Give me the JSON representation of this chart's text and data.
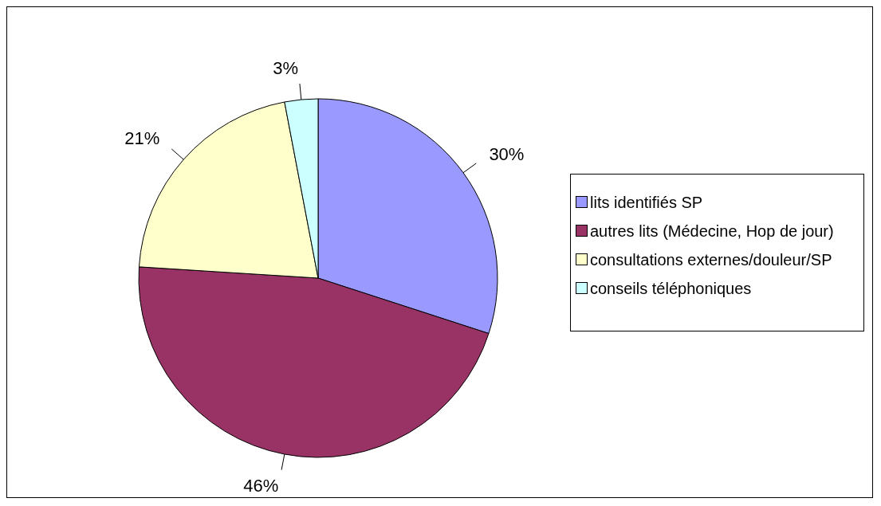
{
  "chart_data": {
    "type": "pie",
    "categories": [
      "lits identifiés SP",
      "autres lits (Médecine, Hop de jour)",
      "consultations externes/douleur/SP",
      "conseils téléphoniques"
    ],
    "values": [
      30,
      46,
      21,
      3
    ],
    "colors": [
      "#9999ff",
      "#993366",
      "#ffffcc",
      "#ccffff"
    ],
    "value_labels": [
      "30%",
      "46%",
      "21%",
      "3%"
    ],
    "legend": "right"
  }
}
